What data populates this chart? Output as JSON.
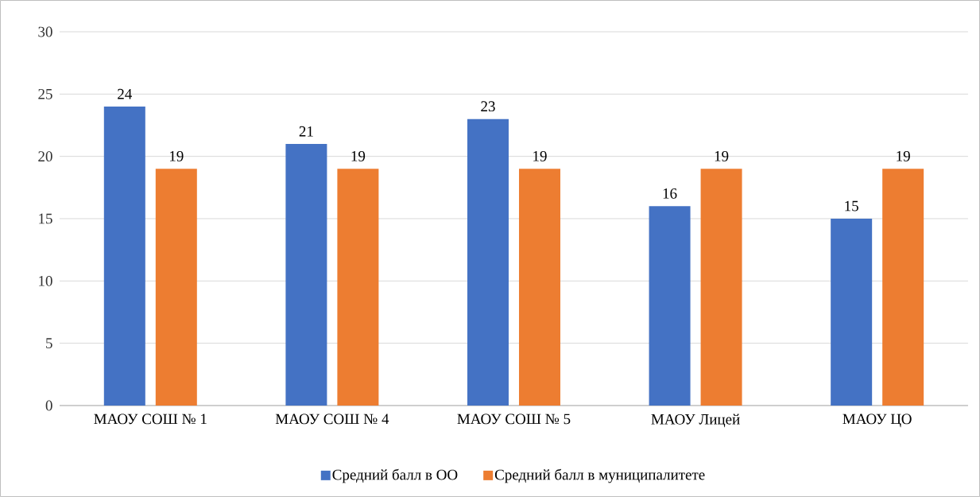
{
  "chart_data": {
    "type": "bar",
    "categories": [
      "МАОУ СОШ № 1",
      "МАОУ СОШ № 4",
      "МАОУ СОШ № 5",
      "МАОУ Лицей",
      "МАОУ ЦО"
    ],
    "series": [
      {
        "name": "Средний балл в ОО",
        "color": "#4472c4",
        "values": [
          24,
          21,
          23,
          16,
          15
        ]
      },
      {
        "name": "Средний балл в муниципалитете",
        "color": "#ed7d31",
        "values": [
          19,
          19,
          19,
          19,
          19
        ]
      }
    ],
    "ylim": [
      0,
      30
    ],
    "yticks": [
      0,
      5,
      10,
      15,
      20,
      25,
      30
    ],
    "grid": "y",
    "legend": "bottom",
    "data_labels": true
  }
}
